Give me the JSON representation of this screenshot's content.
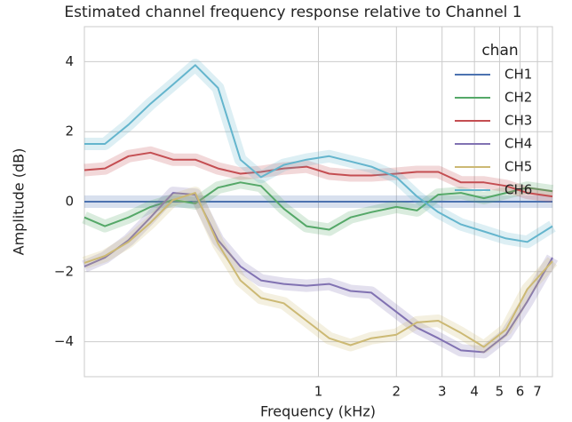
{
  "chart_data": {
    "type": "line",
    "title": "Estimated channel frequency response relative to Channel 1",
    "x_label": "Frequency (kHz)",
    "y_label": "Amplitude (dB)",
    "x_scale": "log",
    "grid": true,
    "legend_title": "chan",
    "legend_position": "upper right",
    "xlim": [
      0.125,
      8
    ],
    "ylim": [
      -5,
      5
    ],
    "xticks": [
      1,
      2,
      3,
      4,
      5,
      6,
      7
    ],
    "yticks": [
      {
        "value": -4,
        "label": "−4"
      },
      {
        "value": -2,
        "label": "−2"
      },
      0,
      2,
      4
    ],
    "x": [
      0.125,
      0.15,
      0.185,
      0.225,
      0.275,
      0.335,
      0.41,
      0.5,
      0.6,
      0.735,
      0.9,
      1.1,
      1.33,
      1.6,
      2,
      2.4,
      2.9,
      3.55,
      4.35,
      5.3,
      6.4,
      8
    ],
    "series": [
      {
        "name": "CH1",
        "color": "#4c72b0",
        "values": [
          0,
          0,
          0,
          0,
          0,
          0,
          0,
          0,
          0,
          0,
          0,
          0,
          0,
          0,
          0,
          0,
          0,
          0,
          0,
          0,
          0,
          0
        ]
      },
      {
        "name": "CH2",
        "color": "#55a868",
        "values": [
          -0.45,
          -0.7,
          -0.45,
          -0.15,
          0.05,
          -0.05,
          0.4,
          0.55,
          0.45,
          -0.2,
          -0.7,
          -0.8,
          -0.45,
          -0.3,
          -0.15,
          -0.25,
          0.2,
          0.25,
          0.1,
          0.25,
          0.4,
          0.3
        ]
      },
      {
        "name": "CH3",
        "color": "#c44e52",
        "values": [
          0.9,
          0.95,
          1.3,
          1.4,
          1.2,
          1.2,
          0.95,
          0.8,
          0.85,
          0.95,
          1.0,
          0.8,
          0.75,
          0.75,
          0.8,
          0.85,
          0.85,
          0.55,
          0.55,
          0.45,
          0.25,
          0.15
        ]
      },
      {
        "name": "CH4",
        "color": "#8172b2",
        "values": [
          -1.85,
          -1.6,
          -1.1,
          -0.45,
          0.25,
          0.2,
          -1.1,
          -1.85,
          -2.25,
          -2.35,
          -2.4,
          -2.35,
          -2.55,
          -2.6,
          -3.15,
          -3.6,
          -3.9,
          -4.25,
          -4.3,
          -3.8,
          -2.85,
          -1.6
        ]
      },
      {
        "name": "CH5",
        "color": "#ccb974",
        "values": [
          -1.75,
          -1.55,
          -1.15,
          -0.6,
          0.05,
          0.25,
          -1.2,
          -2.25,
          -2.75,
          -2.9,
          -3.4,
          -3.9,
          -4.1,
          -3.9,
          -3.8,
          -3.45,
          -3.4,
          -3.75,
          -4.15,
          -3.65,
          -2.5,
          -1.7
        ]
      },
      {
        "name": "CH6",
        "color": "#64b5cd",
        "values": [
          1.65,
          1.65,
          2.2,
          2.8,
          3.35,
          3.9,
          3.25,
          1.2,
          0.7,
          1.05,
          1.2,
          1.3,
          1.15,
          1.0,
          0.7,
          0.15,
          -0.3,
          -0.65,
          -0.85,
          -1.05,
          -1.15,
          -0.7
        ]
      }
    ]
  }
}
